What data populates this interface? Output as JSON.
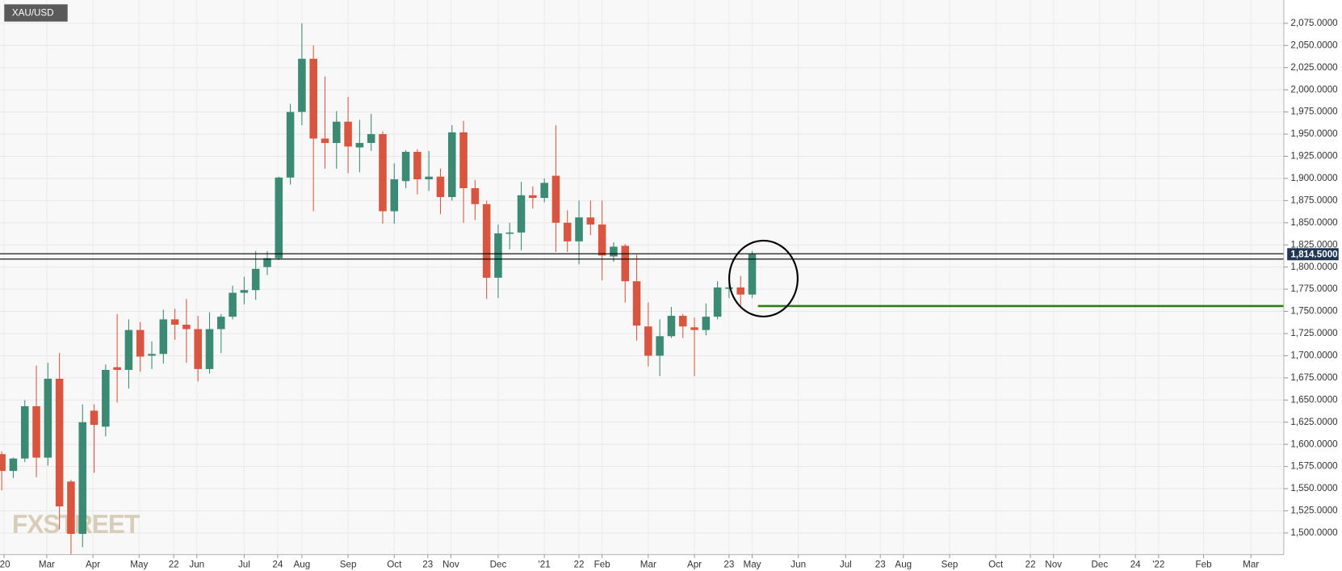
{
  "chart_data": {
    "type": "candlestick",
    "title": "XAU/USD",
    "watermark": "FXSTREET",
    "up_color": "#3b8a74",
    "down_color": "#d9553f",
    "open": [
      1589,
      1570,
      1584,
      1643,
      1585,
      1674,
      1558,
      1499,
      1638,
      1620,
      1687,
      1684,
      1729,
      1700,
      1702,
      1741,
      1735,
      1730,
      1685,
      1730,
      1744,
      1771,
      1774,
      1800,
      1810,
      1901,
      1975,
      2035,
      1945,
      1940,
      1964,
      1935,
      1940,
      1950,
      1863,
      1897,
      1930,
      1899,
      1902,
      1879,
      1952,
      1889,
      1871,
      1788,
      1838,
      1839,
      1881,
      1878,
      1903,
      1850,
      1829,
      1856,
      1848,
      1812,
      1824,
      1784,
      1733,
      1700,
      1722,
      1745,
      1732,
      1729,
      1744,
      1776,
      1777,
      1769
    ],
    "high": [
      1592,
      1585,
      1650,
      1689,
      1692,
      1703,
      1560,
      1645,
      1645,
      1690,
      1747,
      1741,
      1738,
      1716,
      1752,
      1753,
      1764,
      1745,
      1749,
      1747,
      1779,
      1789,
      1818,
      1818,
      1902,
      1984,
      2075,
      2050,
      2015,
      1976,
      1992,
      1966,
      1973,
      1953,
      1917,
      1932,
      1933,
      1931,
      1911,
      1960,
      1965,
      1898,
      1875,
      1848,
      1850,
      1896,
      1891,
      1900,
      1960,
      1864,
      1875,
      1875,
      1875,
      1828,
      1826,
      1814,
      1760,
      1741,
      1755,
      1747,
      1743,
      1759,
      1784,
      1790,
      1790,
      1818
    ],
    "low": [
      1548,
      1562,
      1580,
      1563,
      1576,
      1504,
      1476,
      1484,
      1568,
      1609,
      1647,
      1663,
      1682,
      1685,
      1691,
      1718,
      1692,
      1671,
      1680,
      1703,
      1741,
      1758,
      1763,
      1791,
      1808,
      1893,
      1960,
      1863,
      1911,
      1911,
      1906,
      1907,
      1931,
      1849,
      1849,
      1889,
      1882,
      1886,
      1860,
      1875,
      1850,
      1853,
      1764,
      1765,
      1820,
      1819,
      1866,
      1873,
      1817,
      1817,
      1803,
      1836,
      1785,
      1806,
      1760,
      1717,
      1688,
      1677,
      1720,
      1720,
      1677,
      1723,
      1741,
      1765,
      1756,
      1765
    ],
    "close": [
      1570,
      1584,
      1643,
      1585,
      1674,
      1530,
      1499,
      1625,
      1622,
      1684,
      1684,
      1729,
      1699,
      1702,
      1741,
      1735,
      1730,
      1685,
      1730,
      1744,
      1771,
      1774,
      1798,
      1810,
      1901,
      1975,
      2035,
      1945,
      1940,
      1964,
      1936,
      1940,
      1950,
      1863,
      1899,
      1930,
      1899,
      1902,
      1879,
      1952,
      1889,
      1871,
      1788,
      1838,
      1839,
      1881,
      1878,
      1895,
      1850,
      1829,
      1856,
      1848,
      1813,
      1823,
      1784,
      1734,
      1700,
      1722,
      1745,
      1733,
      1729,
      1744,
      1777,
      1777,
      1769,
      1814.5
    ],
    "price_label": "1,814.5000",
    "hlines": [
      {
        "value": 1815,
        "color": "#000000"
      },
      {
        "value": 1809,
        "color": "#000000"
      },
      {
        "value": 1756,
        "color": "#2e7d0e",
        "start": 65.5
      }
    ],
    "xlim": [
      -0.15,
      111.05
    ],
    "xticks": [
      {
        "value": 0.2,
        "label": "'20"
      },
      {
        "value": 3.9,
        "label": "Mar"
      },
      {
        "value": 7.9,
        "label": "Apr"
      },
      {
        "value": 11.9,
        "label": "May"
      },
      {
        "value": 14.9,
        "label": "22"
      },
      {
        "value": 16.9,
        "label": "Jun"
      },
      {
        "value": 21,
        "label": "Jul"
      },
      {
        "value": 23.9,
        "label": "24"
      },
      {
        "value": 26,
        "label": "Aug"
      },
      {
        "value": 30,
        "label": "Sep"
      },
      {
        "value": 34,
        "label": "Oct"
      },
      {
        "value": 36.9,
        "label": "23"
      },
      {
        "value": 38.9,
        "label": "Nov"
      },
      {
        "value": 43,
        "label": "Dec"
      },
      {
        "value": 47,
        "label": "'21"
      },
      {
        "value": 50,
        "label": "22"
      },
      {
        "value": 52,
        "label": "Feb"
      },
      {
        "value": 56,
        "label": "Mar"
      },
      {
        "value": 60,
        "label": "Apr"
      },
      {
        "value": 63,
        "label": "23"
      },
      {
        "value": 65,
        "label": "May"
      },
      {
        "value": 69,
        "label": "Jun"
      },
      {
        "value": 73.1,
        "label": "Jul"
      },
      {
        "value": 76.1,
        "label": "23"
      },
      {
        "value": 78.1,
        "label": "Aug"
      },
      {
        "value": 82.1,
        "label": "Sep"
      },
      {
        "value": 86.1,
        "label": "Oct"
      },
      {
        "value": 89.1,
        "label": "22"
      },
      {
        "value": 91.1,
        "label": "Nov"
      },
      {
        "value": 95.1,
        "label": "Dec"
      },
      {
        "value": 98.2,
        "label": "24"
      },
      {
        "value": 100.2,
        "label": "'22"
      },
      {
        "value": 104.1,
        "label": "Feb"
      },
      {
        "value": 108.2,
        "label": "Mar"
      }
    ],
    "ylim": [
      1475.6,
      2101.3
    ],
    "yticks": [
      {
        "value": 1500,
        "label": "1,500.0000"
      },
      {
        "value": 1525,
        "label": "1,525.0000"
      },
      {
        "value": 1550,
        "label": "1,550.0000"
      },
      {
        "value": 1575,
        "label": "1,575.0000"
      },
      {
        "value": 1600,
        "label": "1,600.0000"
      },
      {
        "value": 1625,
        "label": "1,625.0000"
      },
      {
        "value": 1650,
        "label": "1,650.0000"
      },
      {
        "value": 1675,
        "label": "1,675.0000"
      },
      {
        "value": 1700,
        "label": "1,700.0000"
      },
      {
        "value": 1725,
        "label": "1,725.0000"
      },
      {
        "value": 1750,
        "label": "1,750.0000"
      },
      {
        "value": 1775,
        "label": "1,775.0000"
      },
      {
        "value": 1800,
        "label": "1,800.0000"
      },
      {
        "value": 1825,
        "label": "1,825.0000"
      },
      {
        "value": 1850,
        "label": "1,850.0000"
      },
      {
        "value": 1875,
        "label": "1,875.0000"
      },
      {
        "value": 1900,
        "label": "1,900.0000"
      },
      {
        "value": 1925,
        "label": "1,925.0000"
      },
      {
        "value": 1950,
        "label": "1,950.0000"
      },
      {
        "value": 1975,
        "label": "1,975.0000"
      },
      {
        "value": 2000,
        "label": "2,000.0000"
      },
      {
        "value": 2025,
        "label": "2,025.0000"
      },
      {
        "value": 2050,
        "label": "2,050.0000"
      },
      {
        "value": 2075,
        "label": "2,075.0000"
      }
    ],
    "grid": true
  }
}
